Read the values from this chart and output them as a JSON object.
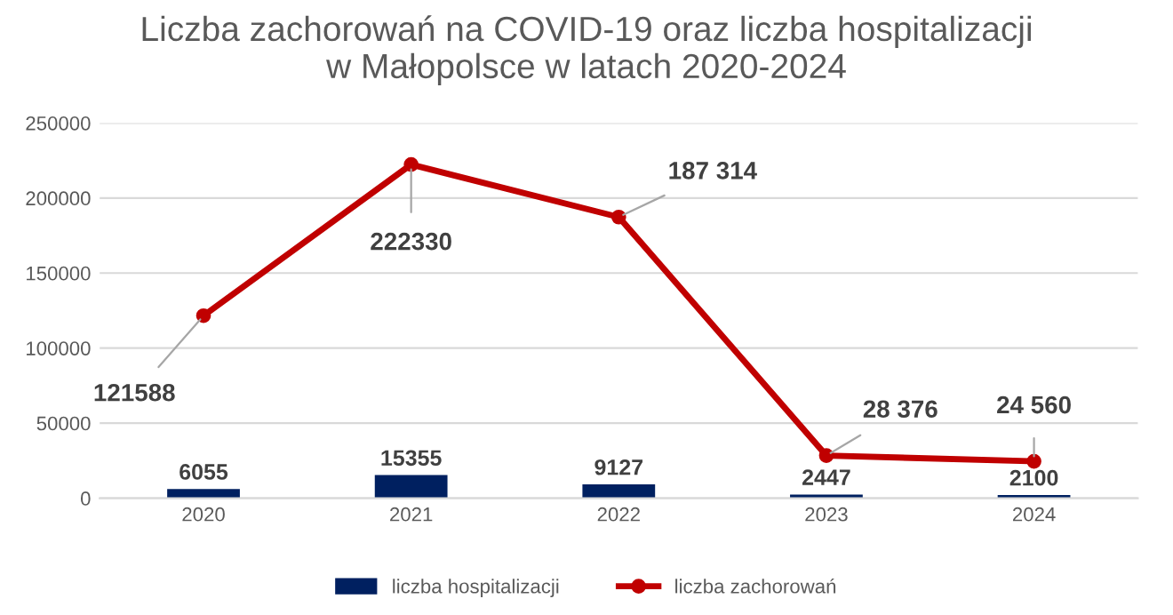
{
  "chart_data": {
    "type": "bar",
    "title": "Liczba zachorowań na COVID-19 oraz liczba hospitalizacji\nw Małopolsce w latach 2020-2024",
    "categories": [
      "2020",
      "2021",
      "2022",
      "2023",
      "2024"
    ],
    "series": [
      {
        "name": "liczba hospitalizacji",
        "color": "#002060",
        "values": [
          6055,
          15355,
          9127,
          2447,
          2100
        ],
        "value_labels": [
          "6055",
          "15355",
          "9127",
          "2447",
          "2100"
        ]
      },
      {
        "name": "liczba zachorowań",
        "type": "line",
        "color": "#c00000",
        "marker": "circle",
        "values": [
          121588,
          222330,
          187314,
          28376,
          24560
        ],
        "value_labels": [
          "121588",
          "222330",
          "187 314",
          "28 376",
          "24 560"
        ]
      }
    ],
    "ylim": [
      0,
      250000
    ],
    "yticks": [
      0,
      50000,
      100000,
      150000,
      200000,
      250000
    ],
    "grid": "y",
    "legend": "bottom"
  }
}
